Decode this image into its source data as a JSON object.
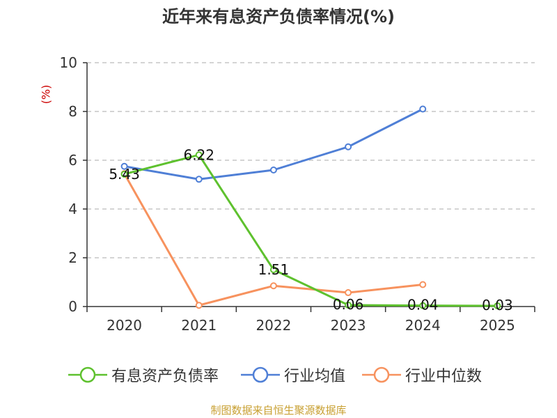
{
  "title": "近年来有息资产负债率情况(%)",
  "unit_label": "(%)",
  "source": "制图数据来自恒生聚源数据库",
  "colors": {
    "debt_ratio": "#5ec12e",
    "industry_avg": "#4f7fd6",
    "industry_median": "#f7925e",
    "axis": "#333333",
    "grid": "#bbbbbb"
  },
  "legend": [
    {
      "label": "有息资产负债率",
      "color": "#5ec12e"
    },
    {
      "label": "行业均值",
      "color": "#4f7fd6"
    },
    {
      "label": "行业中位数",
      "color": "#f7925e"
    }
  ],
  "chart_data": {
    "type": "line",
    "title": "近年来有息资产负债率情况(%)",
    "ylabel": "(%)",
    "categories": [
      "2020",
      "2021",
      "2022",
      "2023",
      "2024",
      "2025"
    ],
    "ylim": [
      0,
      10
    ],
    "yticks": [
      "0",
      "2",
      "4",
      "6",
      "8",
      "10"
    ],
    "grid": true,
    "legend_position": "bottom",
    "series": [
      {
        "name": "有息资产负债率",
        "color": "#5ec12e",
        "values": [
          5.43,
          6.22,
          1.51,
          0.06,
          0.04,
          0.03
        ],
        "labels": [
          "5.43",
          "6.22",
          "1.51",
          "0.06",
          "0.04",
          "0.03"
        ]
      },
      {
        "name": "行业均值",
        "color": "#4f7fd6",
        "values": [
          5.75,
          5.22,
          5.6,
          6.55,
          8.1,
          null
        ]
      },
      {
        "name": "行业中位数",
        "color": "#f7925e",
        "values": [
          5.45,
          0.05,
          0.85,
          0.57,
          0.9,
          null
        ]
      }
    ]
  }
}
